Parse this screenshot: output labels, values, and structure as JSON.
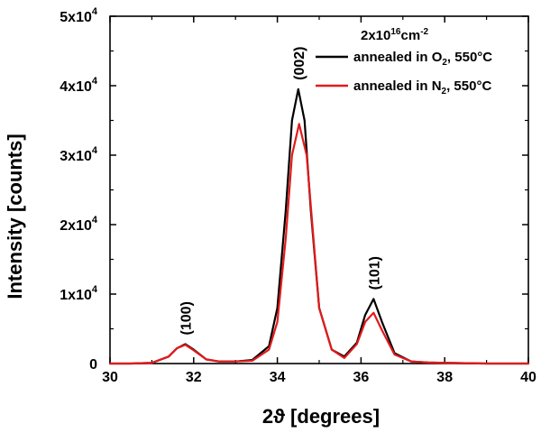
{
  "chart_data": {
    "type": "line",
    "xlabel": "2ϑ [degrees]",
    "ylabel": "Intensity [counts]",
    "xlim": [
      30,
      40
    ],
    "ylim": [
      0,
      50000
    ],
    "x_ticks": [
      30,
      32,
      34,
      36,
      38,
      40
    ],
    "y_ticks": [
      {
        "value": 0,
        "mantissa": "0",
        "exponent": ""
      },
      {
        "value": 10000,
        "mantissa": "1x10",
        "exponent": "4"
      },
      {
        "value": 20000,
        "mantissa": "2x10",
        "exponent": "4"
      },
      {
        "value": 30000,
        "mantissa": "3x10",
        "exponent": "4"
      },
      {
        "value": 40000,
        "mantissa": "4x10",
        "exponent": "4"
      },
      {
        "value": 50000,
        "mantissa": "5x10",
        "exponent": "4"
      }
    ],
    "grid": false,
    "legend": {
      "placement": "top-right",
      "title": {
        "base": "2x10",
        "sup1": "16",
        "unit": "cm",
        "sup2": "-2"
      }
    },
    "series": [
      {
        "label_main": "annealed in O",
        "label_sub": "2",
        "label_tail": ", 550°C",
        "color": "#000000",
        "x": [
          30.0,
          30.5,
          31.0,
          31.4,
          31.6,
          31.8,
          32.0,
          32.3,
          32.6,
          33.0,
          33.4,
          33.8,
          34.0,
          34.2,
          34.35,
          34.5,
          34.65,
          34.8,
          35.0,
          35.3,
          35.6,
          35.9,
          36.1,
          36.3,
          36.5,
          36.8,
          37.2,
          37.6,
          38.0,
          38.5,
          39.0,
          39.5,
          40.0
        ],
        "y": [
          0,
          0,
          100,
          1000,
          2200,
          2800,
          2000,
          600,
          300,
          300,
          500,
          2500,
          8000,
          22000,
          35000,
          39500,
          35000,
          22000,
          8000,
          2000,
          1000,
          3000,
          7000,
          9300,
          6000,
          1500,
          300,
          150,
          100,
          50,
          0,
          0,
          0
        ]
      },
      {
        "label_main": "annealed in N",
        "label_sub": "2",
        "label_tail": ", 550°C",
        "color": "#e31a1c",
        "x": [
          30.0,
          30.5,
          31.0,
          31.4,
          31.6,
          31.8,
          32.0,
          32.3,
          32.6,
          33.0,
          33.4,
          33.8,
          34.0,
          34.2,
          34.35,
          34.52,
          34.7,
          34.85,
          35.0,
          35.3,
          35.6,
          35.9,
          36.1,
          36.3,
          36.5,
          36.8,
          37.2,
          37.6,
          38.0,
          38.5,
          39.0,
          39.5,
          40.0
        ],
        "y": [
          0,
          0,
          100,
          1000,
          2200,
          2700,
          1900,
          600,
          300,
          300,
          400,
          2000,
          6000,
          18000,
          30000,
          34500,
          30000,
          19000,
          8000,
          2000,
          800,
          2800,
          6000,
          7300,
          4800,
          1300,
          300,
          150,
          100,
          50,
          0,
          0,
          0
        ]
      }
    ],
    "peak_labels": [
      {
        "text": "(100)",
        "x": 31.8,
        "y": 2800
      },
      {
        "text": "(002)",
        "x": 34.5,
        "y": 39500
      },
      {
        "text": "(101)",
        "x": 36.3,
        "y": 9300
      }
    ]
  }
}
